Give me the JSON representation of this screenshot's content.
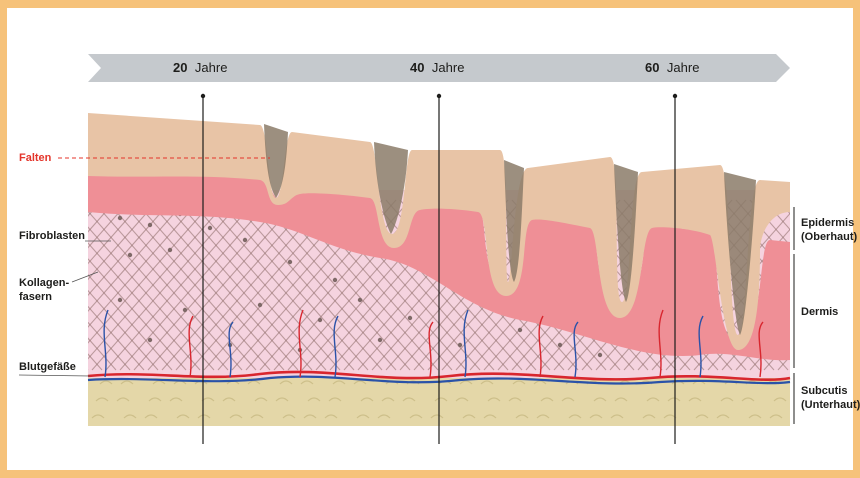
{
  "colors": {
    "frame": "#f6c27a",
    "timeline_arrow": "#c5c9cd",
    "epidermis_top": "#e8c4a6",
    "wrinkle_shadow": "#8b7b68",
    "epidermis_pink": "#ef8f96",
    "dermis": "#f5d3df",
    "collagen": "#8c6a66",
    "subcutis": "#e4d7a8",
    "vessel_red": "#d8262e",
    "vessel_blue": "#2a52a8",
    "falten_red": "#e4352b"
  },
  "timeline": [
    {
      "num": "20",
      "unit": "Jahre"
    },
    {
      "num": "40",
      "unit": "Jahre"
    },
    {
      "num": "60",
      "unit": "Jahre"
    }
  ],
  "left_labels": {
    "falten": "Falten",
    "fibroblasten": "Fibroblasten",
    "kollagen_line1": "Kollagen-",
    "kollagen_line2": "fasern",
    "blutgefaesse": "Blutgefäße"
  },
  "right_labels": {
    "epidermis": "Epidermis",
    "epidermis_sub": "(Oberhaut)",
    "dermis": "Dermis",
    "subcutis": "Subcutis",
    "subcutis_sub": "(Unterhaut)"
  }
}
